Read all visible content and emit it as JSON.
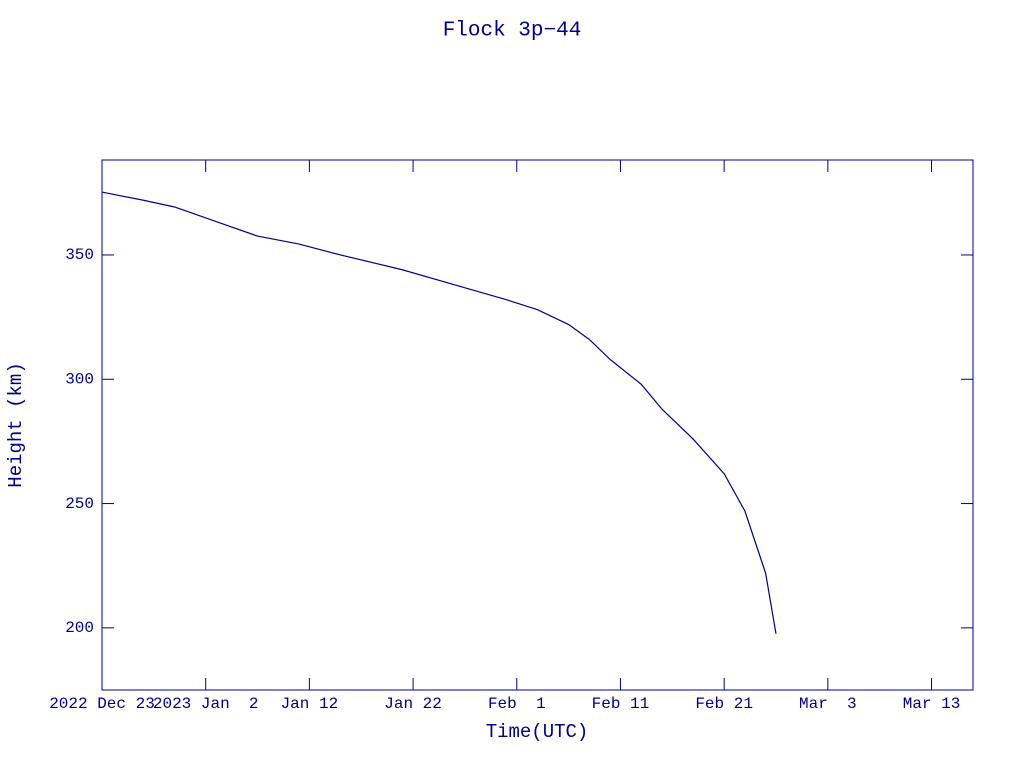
{
  "chart_data": {
    "type": "line",
    "title": "Flock 3p−44",
    "x_label": "Time(UTC)",
    "y_label": "Height (km)",
    "x": [
      "2022-12-23",
      "2022-12-27",
      "2022-12-30",
      "2023-01-04",
      "2023-01-07",
      "2023-01-11",
      "2023-01-15",
      "2023-01-21",
      "2023-01-26",
      "2023-01-31",
      "2023-02-03",
      "2023-02-06",
      "2023-02-08",
      "2023-02-10",
      "2023-02-13",
      "2023-02-15",
      "2023-02-18",
      "2023-02-21",
      "2023-02-23",
      "2023-02-25",
      "2023-02-26"
    ],
    "series": [
      {
        "name": "Height",
        "color": "#00008b",
        "values": [
          375.3,
          372,
          369.3,
          362,
          357.6,
          354.4,
          350,
          344,
          338,
          332,
          328,
          322,
          316,
          308,
          298,
          288,
          276,
          262,
          247,
          222,
          197.6
        ]
      }
    ],
    "xlim": [
      "2022-12-23",
      "2023-03-17"
    ],
    "xticks": [
      {
        "value": "2022-12-23",
        "label": "2022 Dec 23"
      },
      {
        "value": "2023-01-02",
        "label": "2023 Jan  2"
      },
      {
        "value": "2023-01-12",
        "label": "Jan 12"
      },
      {
        "value": "2023-01-22",
        "label": "Jan 22"
      },
      {
        "value": "2023-02-01",
        "label": "Feb  1"
      },
      {
        "value": "2023-02-11",
        "label": "Feb 11"
      },
      {
        "value": "2023-02-21",
        "label": "Feb 21"
      },
      {
        "value": "2023-03-03",
        "label": "Mar  3"
      },
      {
        "value": "2023-03-13",
        "label": "Mar 13"
      }
    ],
    "ylim": [
      175,
      388.2
    ],
    "yticks": [
      200,
      250,
      300,
      350
    ]
  }
}
